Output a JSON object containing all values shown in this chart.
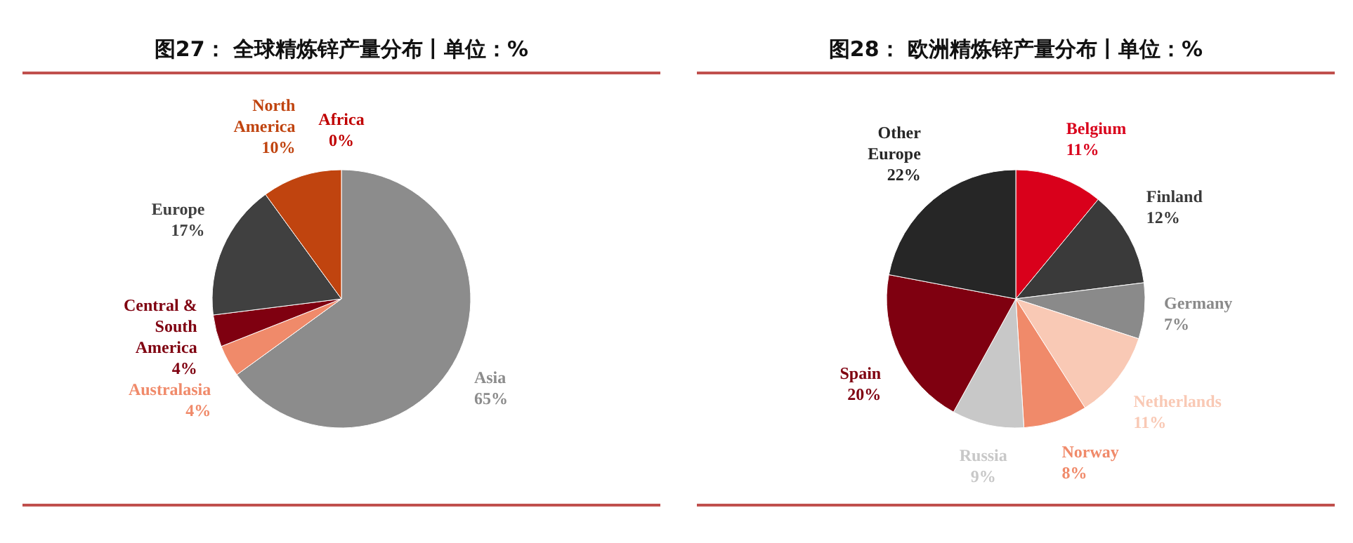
{
  "chart_data": [
    {
      "type": "pie",
      "title": "图27： 全球精炼锌产量分布丨单位：%",
      "categories": [
        "Africa",
        "Asia",
        "Australasia",
        "Central & South America",
        "Europe",
        "North America"
      ],
      "values": [
        0,
        65,
        4,
        4,
        17,
        10
      ],
      "value_labels": [
        "0%",
        "65%",
        "4%",
        "4%",
        "17%",
        "10%"
      ],
      "colors": [
        "#c00000",
        "#8c8c8c",
        "#f08a6a",
        "#7f0010",
        "#404040",
        "#c0440f"
      ],
      "legend": false
    },
    {
      "type": "pie",
      "title": "图28： 欧洲精炼锌产量分布丨单位：%",
      "categories": [
        "Belgium",
        "Finland",
        "Germany",
        "Netherlands",
        "Norway",
        "Russia",
        "Spain",
        "Other Europe"
      ],
      "values": [
        11,
        12,
        7,
        11,
        8,
        9,
        20,
        22
      ],
      "value_labels": [
        "11%",
        "12%",
        "7%",
        "11%",
        "8%",
        "9%",
        "20%",
        "22%"
      ],
      "colors": [
        "#d9001b",
        "#3a3a3a",
        "#8a8a8a",
        "#f9c9b5",
        "#f08a6a",
        "#c8c8c8",
        "#7f0010",
        "#262626"
      ],
      "legend": false
    }
  ]
}
